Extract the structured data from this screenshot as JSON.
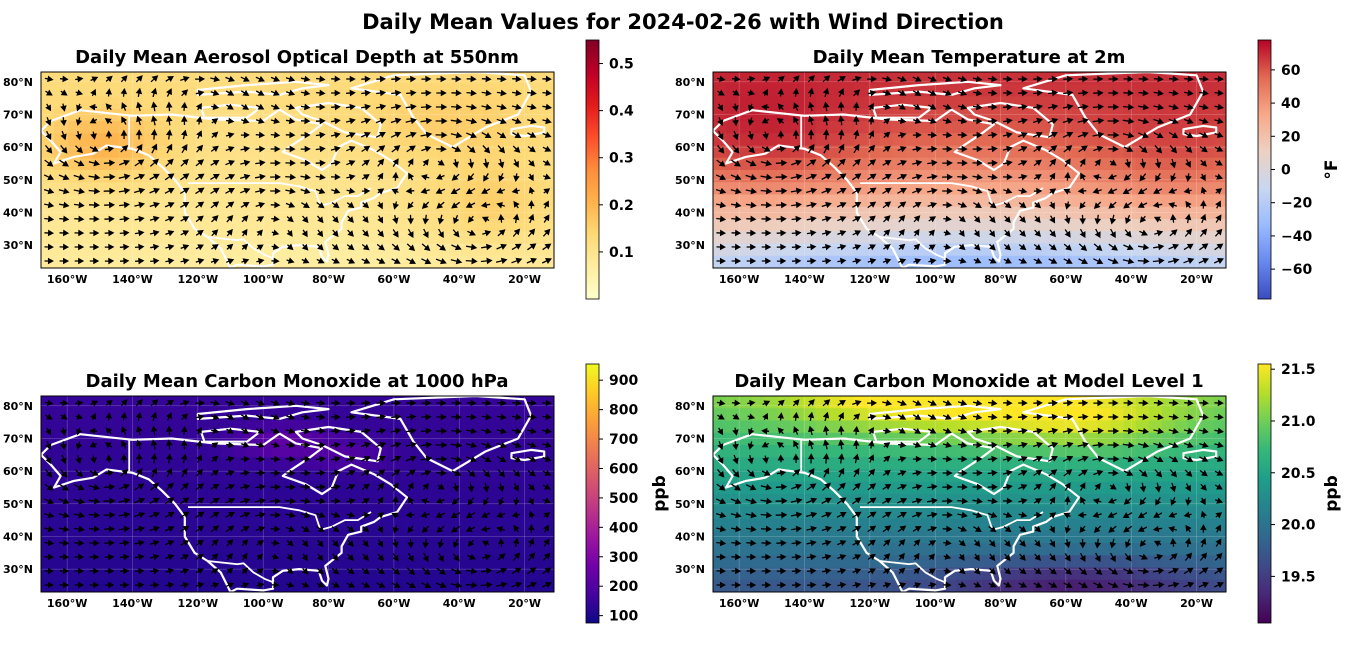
{
  "figure": {
    "title": "Daily Mean Values for 2024-02-26 with Wind Direction"
  },
  "chart_data": [
    {
      "type": "heatmap",
      "title": "Daily Mean Aerosol Optical Depth at 550nm",
      "colormap": "YlOrRd",
      "colormap_stops": [
        "#ffffcc",
        "#ffeda0",
        "#fed976",
        "#feb24c",
        "#fd8d3c",
        "#fc4e2a",
        "#e31a1c",
        "#bd0026",
        "#800026"
      ],
      "colorbar": {
        "label": "",
        "range": [
          0.0,
          0.55
        ],
        "ticks": [
          0.1,
          0.2,
          0.3,
          0.4,
          0.5
        ],
        "tick_labels": [
          "0.1",
          "0.2",
          "0.3",
          "0.4",
          "0.5"
        ]
      },
      "value_range_shown": [
        0.05,
        0.3
      ],
      "overlay": "wind direction arrows",
      "x_ticks": [
        "160°W",
        "140°W",
        "120°W",
        "100°W",
        "80°W",
        "60°W",
        "40°W",
        "20°W"
      ],
      "y_ticks": [
        "80°N",
        "70°N",
        "60°N",
        "50°N",
        "40°N",
        "30°N"
      ],
      "lon_range": [
        -168,
        -11
      ],
      "lat_range": [
        23,
        83
      ],
      "coastline_color": "#ffffff"
    },
    {
      "type": "heatmap",
      "title": "Daily Mean Temperature at 2m",
      "colormap": "coolwarm",
      "colormap_stops": [
        "#3b4cc0",
        "#6788ee",
        "#9abbff",
        "#c9d7f0",
        "#edd1c2",
        "#f7a889",
        "#e26952",
        "#b40426"
      ],
      "colorbar": {
        "label": "°F",
        "range": [
          -78,
          78
        ],
        "ticks": [
          -60,
          -40,
          -20,
          0,
          20,
          40,
          60
        ],
        "tick_labels": [
          "−60",
          "−40",
          "−20",
          "0",
          "20",
          "40",
          "60"
        ]
      },
      "value_range_shown": [
        -25,
        70
      ],
      "overlay": "wind direction arrows",
      "x_ticks": [
        "160°W",
        "140°W",
        "120°W",
        "100°W",
        "80°W",
        "60°W",
        "40°W",
        "20°W"
      ],
      "y_ticks": [
        "80°N",
        "70°N",
        "60°N",
        "50°N",
        "40°N",
        "30°N"
      ],
      "lon_range": [
        -168,
        -11
      ],
      "lat_range": [
        23,
        83
      ],
      "coastline_color": "#ffffff"
    },
    {
      "type": "heatmap",
      "title": "Daily Mean Carbon Monoxide at 1000 hPa",
      "colormap": "plasma",
      "colormap_stops": [
        "#0d0887",
        "#46039f",
        "#7201a8",
        "#9c179e",
        "#bd3786",
        "#d8576b",
        "#ed7953",
        "#fb9f3a",
        "#fdca26",
        "#f0f921"
      ],
      "colorbar": {
        "label": "ppb",
        "range": [
          75,
          955
        ],
        "ticks": [
          100,
          200,
          300,
          400,
          500,
          600,
          700,
          800,
          900
        ],
        "tick_labels": [
          "100",
          "200",
          "300",
          "400",
          "500",
          "600",
          "700",
          "800",
          "900"
        ]
      },
      "value_range_shown": [
        80,
        350
      ],
      "overlay": "wind direction arrows",
      "x_ticks": [
        "160°W",
        "140°W",
        "120°W",
        "100°W",
        "80°W",
        "60°W",
        "40°W",
        "20°W"
      ],
      "y_ticks": [
        "80°N",
        "70°N",
        "60°N",
        "50°N",
        "40°N",
        "30°N"
      ],
      "lon_range": [
        -168,
        -11
      ],
      "lat_range": [
        23,
        83
      ],
      "coastline_color": "#ffffff"
    },
    {
      "type": "heatmap",
      "title": "Daily Mean Carbon Monoxide at Model Level 1",
      "colormap": "viridis",
      "colormap_stops": [
        "#440154",
        "#482878",
        "#3e4a89",
        "#31688e",
        "#26828e",
        "#1f9e89",
        "#35b779",
        "#6ece58",
        "#b5de2b",
        "#fde725"
      ],
      "colorbar": {
        "label": "ppb",
        "range": [
          19.05,
          21.55
        ],
        "ticks": [
          19.5,
          20.0,
          20.5,
          21.0,
          21.5
        ],
        "tick_labels": [
          "19.5",
          "20.0",
          "20.5",
          "21.0",
          "21.5"
        ]
      },
      "value_range_shown": [
        19.1,
        21.5
      ],
      "overlay": "wind direction arrows",
      "x_ticks": [
        "160°W",
        "140°W",
        "120°W",
        "100°W",
        "80°W",
        "60°W",
        "40°W",
        "20°W"
      ],
      "y_ticks": [
        "80°N",
        "70°N",
        "60°N",
        "50°N",
        "40°N",
        "30°N"
      ],
      "lon_range": [
        -168,
        -11
      ],
      "lat_range": [
        23,
        83
      ],
      "coastline_color": "#ffffff"
    }
  ]
}
